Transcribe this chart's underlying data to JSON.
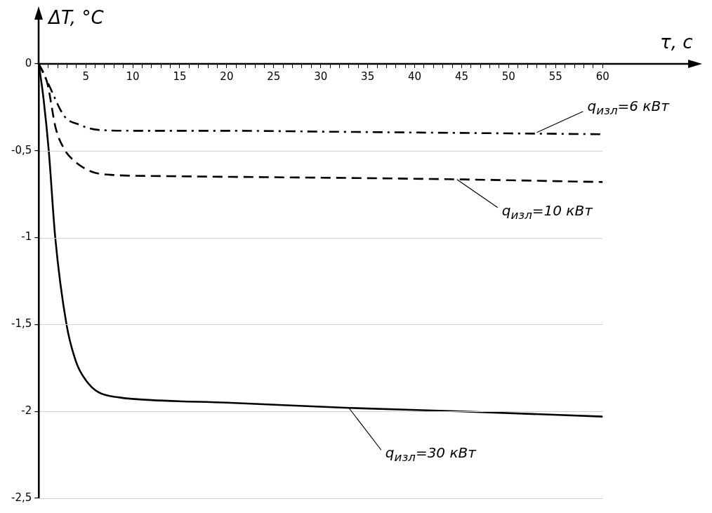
{
  "chart_data": {
    "type": "line",
    "xlabel": "τ, с",
    "ylabel": "ΔT, °C",
    "xlim": [
      0,
      70
    ],
    "ylim": [
      -2.5,
      0
    ],
    "xticks": [
      {
        "value": 1,
        "label": null
      },
      {
        "value": 2,
        "label": null
      },
      {
        "value": 3,
        "label": null
      },
      {
        "value": 4,
        "label": null
      },
      5,
      {
        "value": 6,
        "label": null
      },
      {
        "value": 7,
        "label": null
      },
      {
        "value": 8,
        "label": null
      },
      {
        "value": 9,
        "label": null
      },
      10,
      {
        "value": 11,
        "label": null
      },
      {
        "value": 12,
        "label": null
      },
      {
        "value": 13,
        "label": null
      },
      {
        "value": 14,
        "label": null
      },
      15,
      {
        "value": 16,
        "label": null
      },
      {
        "value": 17,
        "label": null
      },
      {
        "value": 18,
        "label": null
      },
      {
        "value": 19,
        "label": null
      },
      20,
      {
        "value": 21,
        "label": null
      },
      {
        "value": 22,
        "label": null
      },
      {
        "value": 23,
        "label": null
      },
      {
        "value": 24,
        "label": null
      },
      25,
      {
        "value": 26,
        "label": null
      },
      {
        "value": 27,
        "label": null
      },
      {
        "value": 28,
        "label": null
      },
      {
        "value": 29,
        "label": null
      },
      30,
      {
        "value": 31,
        "label": null
      },
      {
        "value": 32,
        "label": null
      },
      {
        "value": 33,
        "label": null
      },
      {
        "value": 34,
        "label": null
      },
      35,
      {
        "value": 36,
        "label": null
      },
      {
        "value": 37,
        "label": null
      },
      {
        "value": 38,
        "label": null
      },
      {
        "value": 39,
        "label": null
      },
      40,
      {
        "value": 41,
        "label": null
      },
      {
        "value": 42,
        "label": null
      },
      {
        "value": 43,
        "label": null
      },
      {
        "value": 44,
        "label": null
      },
      45,
      {
        "value": 46,
        "label": null
      },
      {
        "value": 47,
        "label": null
      },
      {
        "value": 48,
        "label": null
      },
      {
        "value": 49,
        "label": null
      },
      50,
      {
        "value": 51,
        "label": null
      },
      {
        "value": 52,
        "label": null
      },
      {
        "value": 53,
        "label": null
      },
      {
        "value": 54,
        "label": null
      },
      55,
      {
        "value": 56,
        "label": null
      },
      {
        "value": 57,
        "label": null
      },
      {
        "value": 58,
        "label": null
      },
      {
        "value": 59,
        "label": null
      },
      60
    ],
    "yticks": [
      0,
      {
        "value": -0.5,
        "label": "-0,5"
      },
      -1,
      {
        "value": -1.5,
        "label": "-1,5"
      },
      -2,
      {
        "value": -2.5,
        "label": "-2,5"
      }
    ],
    "grid": "y",
    "legend": false,
    "marker": "none",
    "series": [
      {
        "color": "#000000",
        "line_style": "dashdot",
        "x": [
          0,
          1.06,
          2.7,
          4.3,
          6.35,
          10,
          20,
          30,
          40,
          50,
          60
        ],
        "values": [
          0,
          -0.12,
          -0.3,
          -0.35,
          -0.38,
          -0.385,
          -0.385,
          -0.39,
          -0.395,
          -0.4,
          -0.405
        ]
      },
      {
        "color": "#000000",
        "line_style": "dashed",
        "x": [
          0,
          0.9,
          1.8,
          2.7,
          3.8,
          5.6,
          8.1,
          12,
          20,
          30,
          45,
          60
        ],
        "values": [
          0,
          -0.11,
          -0.37,
          -0.49,
          -0.56,
          -0.62,
          -0.64,
          -0.645,
          -0.65,
          -0.655,
          -0.665,
          -0.68
        ]
      },
      {
        "color": "#000000",
        "line_style": "solid",
        "x": [
          0,
          0.5,
          1.06,
          1.75,
          2.95,
          4,
          5,
          6.35,
          8.6,
          12,
          20,
          33,
          45,
          60
        ],
        "values": [
          0,
          -0.2,
          -0.5,
          -1,
          -1.5,
          -1.72,
          -1.82,
          -1.89,
          -1.92,
          -1.935,
          -1.95,
          -1.98,
          -2,
          -2.03
        ]
      }
    ],
    "annotations": [
      {
        "text": "q$_{изл}$=6 кВт",
        "x": 53,
        "y": -0.395
      },
      {
        "text": "q$_{изл}$=10 кВт",
        "x": 44.5,
        "y": -0.665
      },
      {
        "text": "q$_{изл}$=30 кВт",
        "x": 33,
        "y": -1.98
      }
    ]
  }
}
